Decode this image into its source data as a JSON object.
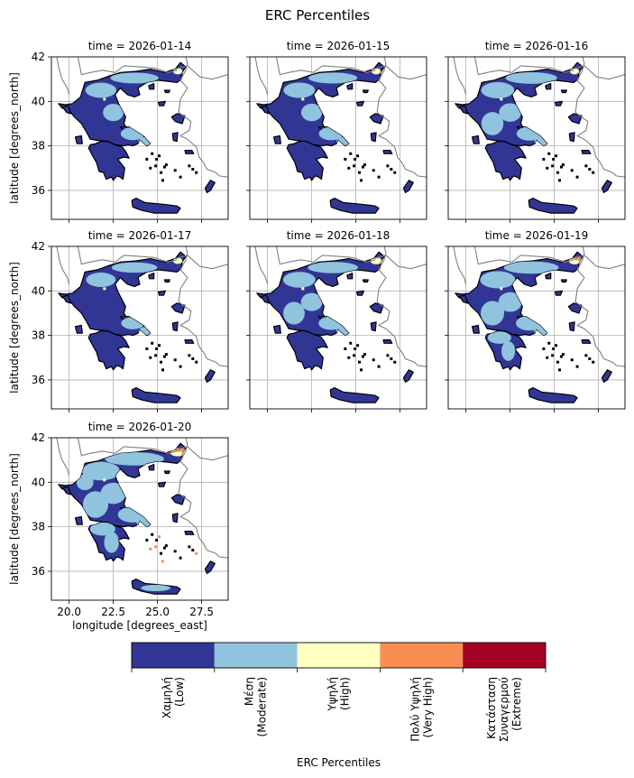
{
  "chart_data": {
    "type": "heatmap",
    "title": "ERC Percentiles",
    "xlabel": "longitude [degrees_east]",
    "ylabel": "latitude [degrees_north]",
    "xlim": [
      19.0,
      29.0
    ],
    "ylim": [
      34.7,
      42.0
    ],
    "x_ticks": [
      20.0,
      22.5,
      25.0,
      27.5
    ],
    "x_tick_labels": [
      "20.0",
      "22.5",
      "25.0",
      "27.5"
    ],
    "y_ticks": [
      36,
      38,
      40,
      42
    ],
    "y_tick_labels": [
      "36",
      "38",
      "40",
      "42"
    ],
    "grid": true,
    "panels": [
      {
        "title": "time = 2026-01-14",
        "date": "2026-01-14",
        "moderate_share": 0.3,
        "high_share": 0.01,
        "very_high_share": 0.0
      },
      {
        "title": "time = 2026-01-15",
        "date": "2026-01-15",
        "moderate_share": 0.32,
        "high_share": 0.01,
        "very_high_share": 0.0
      },
      {
        "title": "time = 2026-01-16",
        "date": "2026-01-16",
        "moderate_share": 0.38,
        "high_share": 0.01,
        "very_high_share": 0.0
      },
      {
        "title": "time = 2026-01-17",
        "date": "2026-01-17",
        "moderate_share": 0.25,
        "high_share": 0.01,
        "very_high_share": 0.0
      },
      {
        "title": "time = 2026-01-18",
        "date": "2026-01-18",
        "moderate_share": 0.35,
        "high_share": 0.02,
        "very_high_share": 0.0
      },
      {
        "title": "time = 2026-01-19",
        "date": "2026-01-19",
        "moderate_share": 0.45,
        "high_share": 0.02,
        "very_high_share": 0.005
      },
      {
        "title": "time = 2026-01-20",
        "date": "2026-01-20",
        "moderate_share": 0.55,
        "high_share": 0.04,
        "very_high_share": 0.01
      }
    ],
    "colorbar": {
      "label": "ERC Percentiles",
      "classes": [
        {
          "lines": [
            "Χαμηλή",
            "(Low)"
          ],
          "color": "#313695"
        },
        {
          "lines": [
            "Μέση",
            "(Moderate)"
          ],
          "color": "#8fc3de"
        },
        {
          "lines": [
            "Υψηλή",
            "(High)"
          ],
          "color": "#ffffbf"
        },
        {
          "lines": [
            "Πολύ Υψηλή",
            "(Very High)"
          ],
          "color": "#f98e52"
        },
        {
          "lines": [
            "Κατάσταση",
            "Συναγερμού",
            "(Extreme)"
          ],
          "color": "#a50026"
        }
      ]
    }
  }
}
